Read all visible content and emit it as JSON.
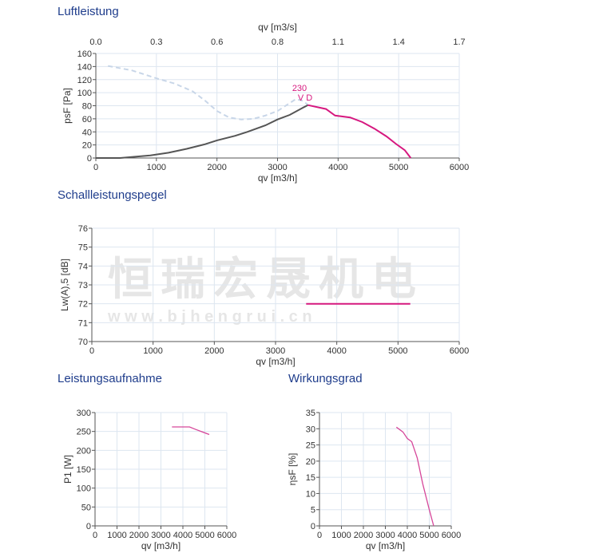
{
  "chart_data": [
    {
      "type": "line",
      "title": "Luftleistung",
      "xlabel": "qv [m3/h]",
      "ylabel": "psF [Pa]",
      "x2label": "qv [m3/s]",
      "xlim": [
        0,
        6000
      ],
      "ylim": [
        0,
        160
      ],
      "xticks": [
        0,
        1000,
        2000,
        3000,
        4000,
        5000,
        6000
      ],
      "yticks": [
        0,
        20,
        40,
        60,
        80,
        100,
        120,
        140,
        160
      ],
      "x2ticks": [
        "0.0",
        "0.3",
        "0.6",
        "0.8",
        "1.1",
        "1.4",
        "1.7"
      ],
      "grid": true,
      "annotation": [
        "230",
        "V D"
      ],
      "series": [
        {
          "style": "dashed",
          "color": "#c8d6e8",
          "points": [
            [
              200,
              141
            ],
            [
              600,
              134
            ],
            [
              1000,
              122
            ],
            [
              1300,
              114
            ],
            [
              1600,
              102
            ],
            [
              1800,
              88
            ],
            [
              2000,
              72
            ],
            [
              2200,
              62
            ],
            [
              2400,
              59
            ],
            [
              2600,
              60
            ],
            [
              2800,
              65
            ],
            [
              3000,
              72
            ],
            [
              3200,
              84
            ],
            [
              3300,
              90
            ],
            [
              3400,
              88
            ],
            [
              3500,
              82
            ]
          ]
        },
        {
          "style": "solid",
          "color": "#555555",
          "points": [
            [
              0,
              0
            ],
            [
              400,
              0
            ],
            [
              900,
              4
            ],
            [
              1200,
              8
            ],
            [
              1500,
              14
            ],
            [
              1800,
              21
            ],
            [
              2000,
              27
            ],
            [
              2300,
              34
            ],
            [
              2500,
              40
            ],
            [
              2800,
              50
            ],
            [
              3000,
              59
            ],
            [
              3200,
              66
            ],
            [
              3500,
              81
            ]
          ]
        },
        {
          "style": "solid",
          "color": "#d6187f",
          "points": [
            [
              3500,
              81
            ],
            [
              3800,
              75
            ],
            [
              3950,
              65
            ],
            [
              4200,
              62
            ],
            [
              4400,
              55
            ],
            [
              4600,
              45
            ],
            [
              4800,
              33
            ],
            [
              4950,
              22
            ],
            [
              5100,
              12
            ],
            [
              5200,
              0
            ]
          ]
        }
      ]
    },
    {
      "type": "line",
      "title": "Schallleistungspegel",
      "xlabel": "qv [m3/h]",
      "ylabel": "Lw(A),5 [dB]",
      "xlim": [
        0,
        6000
      ],
      "ylim": [
        70,
        76
      ],
      "xticks": [
        0,
        1000,
        2000,
        3000,
        4000,
        5000,
        6000
      ],
      "yticks": [
        70,
        71,
        72,
        73,
        74,
        75,
        76
      ],
      "grid": true,
      "series": [
        {
          "style": "solid",
          "color": "#d6187f",
          "points": [
            [
              3500,
              72
            ],
            [
              5200,
              72
            ]
          ]
        }
      ]
    },
    {
      "type": "line",
      "title": "Leistungsaufnahme",
      "xlabel": "qv [m3/h]",
      "ylabel": "P1 [W]",
      "xlim": [
        0,
        6000
      ],
      "ylim": [
        0,
        300
      ],
      "xticks": [
        0,
        1000,
        2000,
        3000,
        4000,
        5000,
        6000
      ],
      "yticks": [
        0,
        50,
        100,
        150,
        200,
        250,
        300
      ],
      "grid": true,
      "series": [
        {
          "style": "solid",
          "color": "#d6479a",
          "points": [
            [
              3500,
              262
            ],
            [
              4300,
              262
            ],
            [
              4600,
              255
            ],
            [
              5200,
              242
            ]
          ]
        }
      ]
    },
    {
      "type": "line",
      "title": "Wirkungsgrad",
      "xlabel": "qv [m3/h]",
      "ylabel": "ηsF [%]",
      "xlim": [
        0,
        6000
      ],
      "ylim": [
        0,
        35
      ],
      "xticks": [
        0,
        1000,
        2000,
        3000,
        4000,
        5000,
        6000
      ],
      "yticks": [
        0,
        5,
        10,
        15,
        20,
        25,
        30,
        35
      ],
      "grid": true,
      "series": [
        {
          "style": "solid",
          "color": "#d6479a",
          "points": [
            [
              3500,
              30.5
            ],
            [
              3800,
              29
            ],
            [
              4000,
              27
            ],
            [
              4200,
              26
            ],
            [
              4450,
              21
            ],
            [
              4700,
              13
            ],
            [
              5000,
              5
            ],
            [
              5200,
              0
            ]
          ]
        }
      ]
    }
  ],
  "watermark": {
    "main": "恒瑞宏晟机电",
    "url": "w w w . b j h e n g r u i . c n"
  }
}
